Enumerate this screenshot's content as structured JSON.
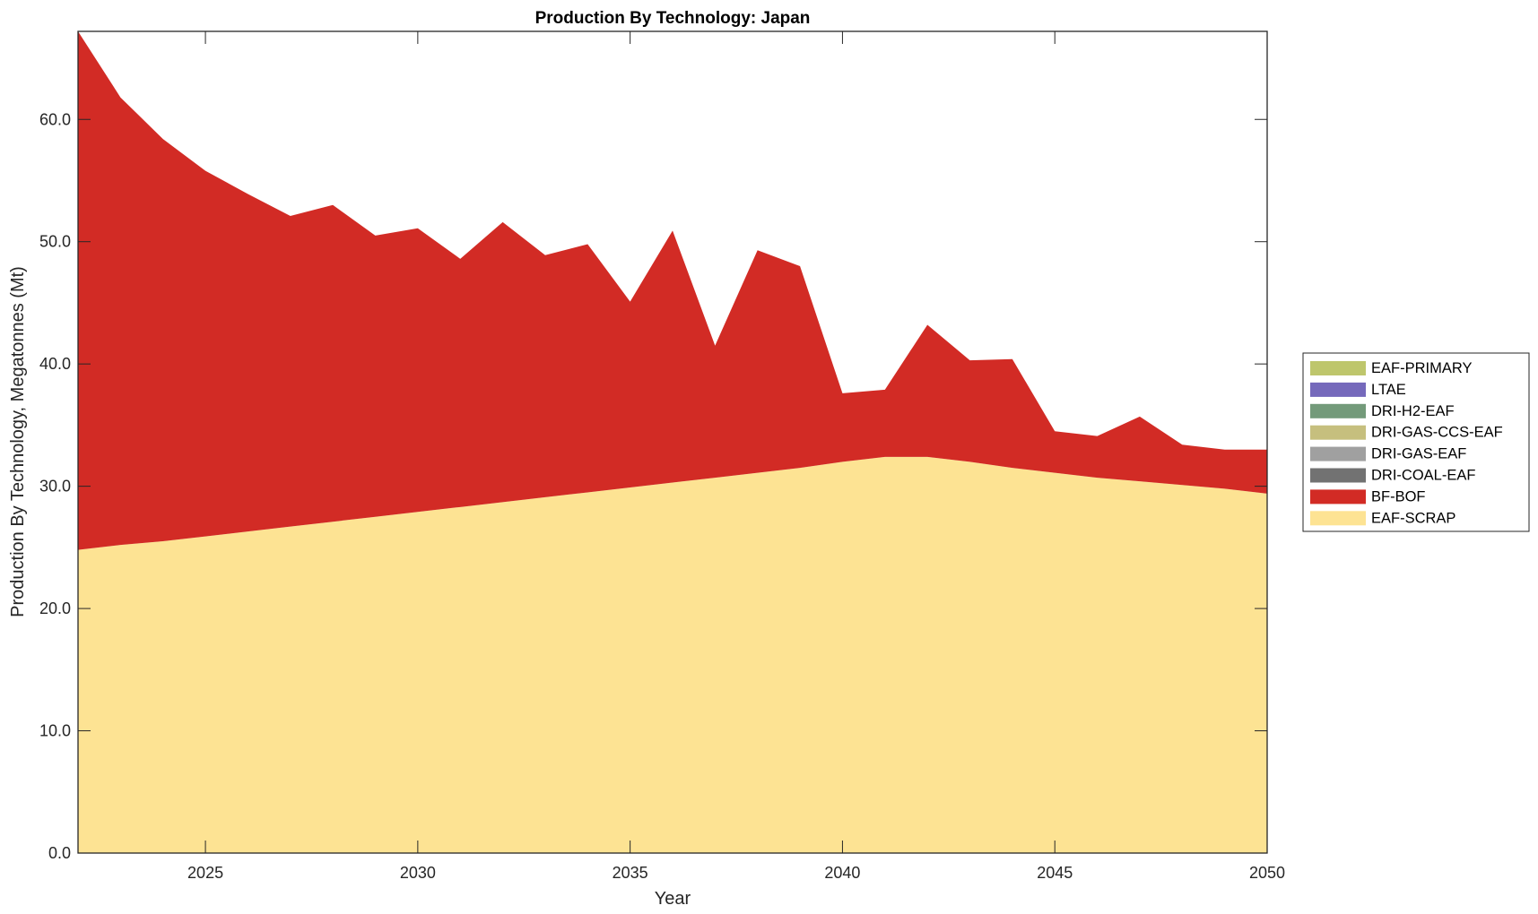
{
  "chart_data": {
    "type": "area",
    "stacked": true,
    "title": "Production By Technology: Japan",
    "xlabel": "Year",
    "ylabel": "Production By Technology, Megatonnes (Mt)",
    "xlim": [
      2022,
      2050
    ],
    "ylim": [
      0,
      67.2
    ],
    "xticks": [
      2025,
      2030,
      2035,
      2040,
      2045,
      2050
    ],
    "xtick_labels": [
      "2025",
      "2030",
      "2035",
      "2040",
      "2045",
      "2050"
    ],
    "yticks": [
      0,
      10,
      20,
      30,
      40,
      50,
      60
    ],
    "ytick_labels": [
      "0.0",
      "10.0",
      "20.0",
      "30.0",
      "40.0",
      "50.0",
      "60.0"
    ],
    "grid": false,
    "legend_position": "right",
    "x": [
      2022,
      2023,
      2024,
      2025,
      2026,
      2027,
      2028,
      2029,
      2030,
      2031,
      2032,
      2033,
      2034,
      2035,
      2036,
      2037,
      2038,
      2039,
      2040,
      2041,
      2042,
      2043,
      2044,
      2045,
      2046,
      2047,
      2048,
      2049,
      2050
    ],
    "series": [
      {
        "name": "EAF-SCRAP",
        "color": "#fde393",
        "values": [
          24.8,
          25.2,
          25.5,
          25.9,
          26.3,
          26.7,
          27.1,
          27.5,
          27.9,
          28.3,
          28.7,
          29.1,
          29.5,
          29.9,
          30.3,
          30.7,
          31.1,
          31.5,
          32.0,
          32.4,
          32.4,
          32.0,
          31.5,
          31.1,
          30.7,
          30.4,
          30.1,
          29.8,
          29.4
        ]
      },
      {
        "name": "BF-BOF",
        "color": "#d22b25",
        "values": [
          42.4,
          36.6,
          32.9,
          29.9,
          27.6,
          25.4,
          25.9,
          23.0,
          23.2,
          20.3,
          22.9,
          19.8,
          20.3,
          15.2,
          20.6,
          10.8,
          18.2,
          16.5,
          5.6,
          5.5,
          10.8,
          8.3,
          8.9,
          3.4,
          3.4,
          5.3,
          3.3,
          3.2,
          3.6
        ]
      },
      {
        "name": "DRI-COAL-EAF",
        "color": "#727272",
        "values": [
          0,
          0,
          0,
          0,
          0,
          0,
          0,
          0,
          0,
          0,
          0,
          0,
          0,
          0,
          0,
          0,
          0,
          0,
          0,
          0,
          0,
          0,
          0,
          0,
          0,
          0,
          0,
          0,
          0
        ]
      },
      {
        "name": "DRI-GAS-EAF",
        "color": "#a0a0a0",
        "values": [
          0,
          0,
          0,
          0,
          0,
          0,
          0,
          0,
          0,
          0,
          0,
          0,
          0,
          0,
          0,
          0,
          0,
          0,
          0,
          0,
          0,
          0,
          0,
          0,
          0,
          0,
          0,
          0,
          0
        ]
      },
      {
        "name": "DRI-GAS-CCS-EAF",
        "color": "#c6bf7e",
        "values": [
          0,
          0,
          0,
          0,
          0,
          0,
          0,
          0,
          0,
          0,
          0,
          0,
          0,
          0,
          0,
          0,
          0,
          0,
          0,
          0,
          0,
          0,
          0,
          0,
          0,
          0,
          0,
          0,
          0
        ]
      },
      {
        "name": "DRI-H2-EAF",
        "color": "#739a7a",
        "values": [
          0,
          0,
          0,
          0,
          0,
          0,
          0,
          0,
          0,
          0,
          0,
          0,
          0,
          0,
          0,
          0,
          0,
          0,
          0,
          0,
          0,
          0,
          0,
          0,
          0,
          0,
          0,
          0,
          0
        ]
      },
      {
        "name": "LTAE",
        "color": "#7569bb",
        "values": [
          0,
          0,
          0,
          0,
          0,
          0,
          0,
          0,
          0,
          0,
          0,
          0,
          0,
          0,
          0,
          0,
          0,
          0,
          0,
          0,
          0,
          0,
          0,
          0,
          0,
          0,
          0,
          0,
          0
        ]
      },
      {
        "name": "EAF-PRIMARY",
        "color": "#bec66c",
        "values": [
          0,
          0,
          0,
          0,
          0,
          0,
          0,
          0,
          0,
          0,
          0,
          0,
          0,
          0,
          0,
          0,
          0,
          0,
          0,
          0,
          0,
          0,
          0,
          0,
          0,
          0,
          0,
          0,
          0
        ]
      }
    ],
    "legend_order": [
      "EAF-PRIMARY",
      "LTAE",
      "DRI-H2-EAF",
      "DRI-GAS-CCS-EAF",
      "DRI-GAS-EAF",
      "DRI-COAL-EAF",
      "BF-BOF",
      "EAF-SCRAP"
    ]
  }
}
